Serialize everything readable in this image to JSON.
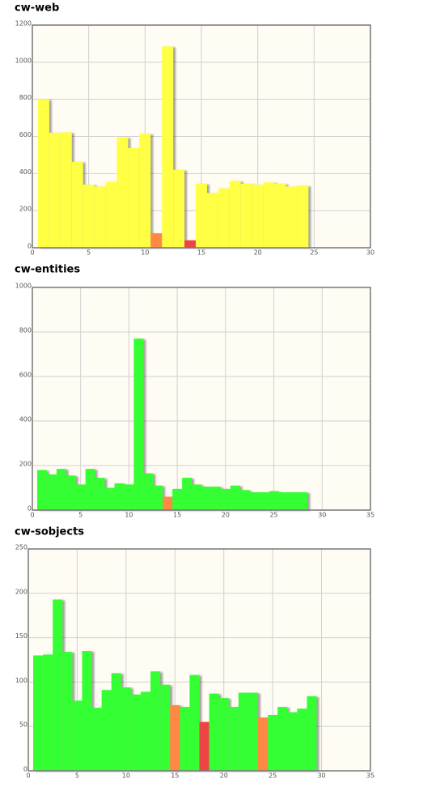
{
  "chart_data": [
    {
      "type": "bar",
      "title": "cw-web",
      "x": [
        1,
        2,
        3,
        4,
        5,
        6,
        7,
        8,
        9,
        10,
        11,
        12,
        13,
        14,
        15,
        16,
        17,
        18,
        19,
        20,
        21,
        22,
        23,
        24
      ],
      "values": [
        800,
        620,
        622,
        463,
        340,
        330,
        355,
        595,
        537,
        615,
        78,
        1085,
        420,
        40,
        345,
        295,
        320,
        360,
        345,
        340,
        352,
        345,
        330,
        335
      ],
      "colors": [
        "#ffff44",
        "#ffff44",
        "#ffff44",
        "#ffff44",
        "#ffff44",
        "#ffff44",
        "#ffff44",
        "#ffff44",
        "#ffff44",
        "#ffff44",
        "#ff8844",
        "#ffff44",
        "#ffff44",
        "#ee4444",
        "#ffff44",
        "#ffff44",
        "#ffff44",
        "#ffff44",
        "#ffff44",
        "#ffff44",
        "#ffff44",
        "#ffff44",
        "#ffff44",
        "#ffff44"
      ],
      "xlim": [
        0,
        30
      ],
      "xticks": [
        0,
        5,
        10,
        15,
        20,
        25,
        30
      ],
      "ylim": [
        0,
        1200
      ],
      "yticks": [
        0,
        200,
        400,
        600,
        800,
        1000,
        1200
      ],
      "grid": true
    },
    {
      "type": "bar",
      "title": "cw-entities",
      "x": [
        1,
        2,
        3,
        4,
        5,
        6,
        7,
        8,
        9,
        10,
        11,
        12,
        13,
        14,
        15,
        16,
        17,
        18,
        19,
        20,
        21,
        22,
        23,
        24,
        25,
        26,
        27,
        28
      ],
      "values": [
        180,
        160,
        185,
        155,
        115,
        185,
        145,
        100,
        120,
        115,
        770,
        165,
        110,
        60,
        95,
        145,
        115,
        105,
        105,
        95,
        110,
        90,
        80,
        80,
        85,
        80,
        80,
        80
      ],
      "colors": [
        "#33ff33",
        "#33ff33",
        "#33ff33",
        "#33ff33",
        "#33ff33",
        "#33ff33",
        "#33ff33",
        "#33ff33",
        "#33ff33",
        "#33ff33",
        "#33ff33",
        "#33ff33",
        "#33ff33",
        "#ff8844",
        "#33ff33",
        "#33ff33",
        "#33ff33",
        "#33ff33",
        "#33ff33",
        "#33ff33",
        "#33ff33",
        "#33ff33",
        "#33ff33",
        "#33ff33",
        "#33ff33",
        "#33ff33",
        "#33ff33",
        "#33ff33"
      ],
      "xlim": [
        0,
        35
      ],
      "xticks": [
        0,
        5,
        10,
        15,
        20,
        25,
        30,
        35
      ],
      "ylim": [
        0,
        1000
      ],
      "yticks": [
        0,
        200,
        400,
        600,
        800,
        1000
      ],
      "grid": true
    },
    {
      "type": "bar",
      "title": "cw-sobjects",
      "x": [
        1,
        2,
        3,
        4,
        5,
        6,
        7,
        8,
        9,
        10,
        11,
        12,
        13,
        14,
        15,
        16,
        17,
        18,
        19,
        20,
        21,
        22,
        23,
        24,
        25,
        26,
        27,
        28,
        29
      ],
      "values": [
        130,
        131,
        193,
        134,
        79,
        135,
        71,
        91,
        110,
        94,
        86,
        89,
        112,
        97,
        74,
        72,
        108,
        55,
        87,
        82,
        72,
        88,
        88,
        60,
        63,
        72,
        66,
        70,
        84
      ],
      "colors": [
        "#33ff33",
        "#33ff33",
        "#33ff33",
        "#33ff33",
        "#33ff33",
        "#33ff33",
        "#33ff33",
        "#33ff33",
        "#33ff33",
        "#33ff33",
        "#33ff33",
        "#33ff33",
        "#33ff33",
        "#33ff33",
        "#ff8844",
        "#33ff33",
        "#33ff33",
        "#ee4444",
        "#33ff33",
        "#33ff33",
        "#33ff33",
        "#33ff33",
        "#33ff33",
        "#ff8844",
        "#33ff33",
        "#33ff33",
        "#33ff33",
        "#33ff33",
        "#33ff33"
      ],
      "xlim": [
        0,
        35
      ],
      "xticks": [
        0,
        5,
        10,
        15,
        20,
        25,
        30,
        35
      ],
      "ylim": [
        0,
        250
      ],
      "yticks": [
        0,
        50,
        100,
        150,
        200,
        250
      ],
      "grid": true
    }
  ]
}
